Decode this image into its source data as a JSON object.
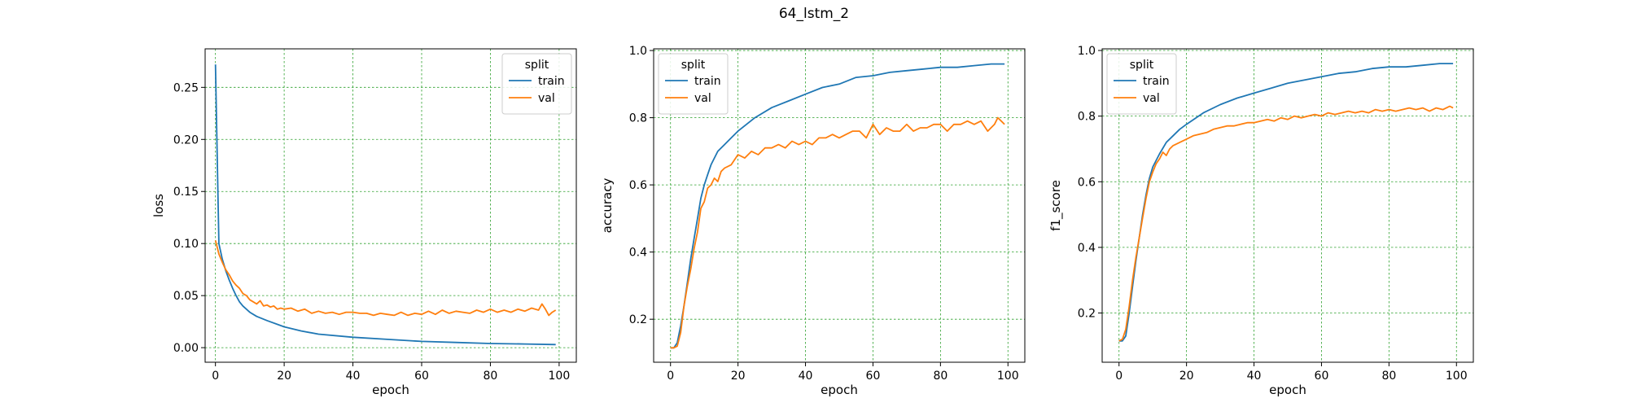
{
  "figure": {
    "suptitle": "64_lstm_2"
  },
  "colors": {
    "train": "#1f77b4",
    "val": "#ff7f0e",
    "grid": "#2ca02c"
  },
  "chart_data": [
    {
      "type": "line",
      "title": "",
      "xlabel": "epoch",
      "ylabel": "loss",
      "xlim": [
        -3,
        105
      ],
      "ylim": [
        -0.014,
        0.287
      ],
      "xticks": [
        0,
        20,
        40,
        60,
        80,
        100
      ],
      "yticks": [
        0.0,
        0.05,
        0.1,
        0.15,
        0.2,
        0.25
      ],
      "ytick_labels": [
        "0.00",
        "0.05",
        "0.10",
        "0.15",
        "0.20",
        "0.25"
      ],
      "grid": true,
      "legend": {
        "title": "split",
        "placement": "top-right"
      },
      "series": [
        {
          "name": "train",
          "x": [
            0,
            1,
            2,
            3,
            4,
            5,
            6,
            7,
            8,
            10,
            12,
            15,
            20,
            25,
            30,
            40,
            50,
            60,
            70,
            80,
            90,
            99
          ],
          "y": [
            0.272,
            0.1,
            0.085,
            0.074,
            0.065,
            0.057,
            0.05,
            0.044,
            0.04,
            0.034,
            0.03,
            0.026,
            0.02,
            0.016,
            0.013,
            0.01,
            0.008,
            0.006,
            0.005,
            0.004,
            0.0035,
            0.003
          ]
        },
        {
          "name": "val",
          "x": [
            0,
            1,
            2,
            3,
            4,
            5,
            6,
            7,
            8,
            9,
            10,
            11,
            12,
            13,
            14,
            15,
            16,
            17,
            18,
            19,
            20,
            22,
            24,
            26,
            28,
            30,
            32,
            34,
            36,
            38,
            40,
            42,
            44,
            46,
            48,
            50,
            52,
            54,
            56,
            58,
            60,
            62,
            64,
            66,
            68,
            70,
            72,
            74,
            76,
            78,
            80,
            82,
            84,
            86,
            88,
            90,
            92,
            94,
            95,
            96,
            97,
            98,
            99
          ],
          "y": [
            0.103,
            0.09,
            0.082,
            0.075,
            0.07,
            0.064,
            0.06,
            0.057,
            0.052,
            0.05,
            0.046,
            0.044,
            0.042,
            0.045,
            0.04,
            0.041,
            0.039,
            0.04,
            0.037,
            0.038,
            0.037,
            0.038,
            0.035,
            0.037,
            0.033,
            0.035,
            0.033,
            0.034,
            0.032,
            0.034,
            0.034,
            0.033,
            0.033,
            0.031,
            0.033,
            0.032,
            0.031,
            0.034,
            0.031,
            0.033,
            0.032,
            0.035,
            0.032,
            0.036,
            0.033,
            0.035,
            0.034,
            0.033,
            0.036,
            0.034,
            0.037,
            0.034,
            0.036,
            0.034,
            0.037,
            0.035,
            0.038,
            0.036,
            0.042,
            0.037,
            0.031,
            0.034,
            0.036
          ]
        }
      ]
    },
    {
      "type": "line",
      "title": "",
      "xlabel": "epoch",
      "ylabel": "accuracy",
      "xlim": [
        -5,
        105
      ],
      "ylim": [
        0.072,
        1.005
      ],
      "xticks": [
        0,
        20,
        40,
        60,
        80,
        100
      ],
      "yticks": [
        0.2,
        0.4,
        0.6,
        0.8,
        1.0
      ],
      "ytick_labels": [
        "0.2",
        "0.4",
        "0.6",
        "0.8",
        "1.0"
      ],
      "grid": true,
      "legend": {
        "title": "split",
        "placement": "top-left"
      },
      "series": [
        {
          "name": "train",
          "x": [
            0,
            1,
            2,
            3,
            4,
            5,
            6,
            7,
            8,
            9,
            10,
            11,
            12,
            14,
            16,
            18,
            20,
            25,
            30,
            35,
            40,
            45,
            50,
            55,
            60,
            65,
            70,
            75,
            80,
            85,
            90,
            95,
            99
          ],
          "y": [
            0.115,
            0.115,
            0.13,
            0.18,
            0.24,
            0.31,
            0.38,
            0.44,
            0.5,
            0.56,
            0.6,
            0.63,
            0.66,
            0.7,
            0.72,
            0.74,
            0.76,
            0.8,
            0.83,
            0.85,
            0.87,
            0.89,
            0.9,
            0.92,
            0.925,
            0.935,
            0.94,
            0.945,
            0.95,
            0.95,
            0.955,
            0.96,
            0.96
          ]
        },
        {
          "name": "val",
          "x": [
            0,
            1,
            2,
            3,
            4,
            5,
            6,
            7,
            8,
            9,
            10,
            11,
            12,
            13,
            14,
            15,
            16,
            18,
            20,
            22,
            24,
            26,
            28,
            30,
            32,
            34,
            36,
            38,
            40,
            42,
            44,
            46,
            48,
            50,
            52,
            54,
            56,
            58,
            60,
            62,
            64,
            66,
            68,
            70,
            72,
            74,
            76,
            78,
            80,
            82,
            84,
            86,
            88,
            90,
            92,
            94,
            96,
            97,
            98,
            99
          ],
          "y": [
            0.115,
            0.115,
            0.12,
            0.16,
            0.24,
            0.3,
            0.35,
            0.41,
            0.46,
            0.53,
            0.55,
            0.59,
            0.6,
            0.62,
            0.61,
            0.64,
            0.65,
            0.66,
            0.69,
            0.68,
            0.7,
            0.69,
            0.71,
            0.71,
            0.72,
            0.71,
            0.73,
            0.72,
            0.73,
            0.72,
            0.74,
            0.74,
            0.75,
            0.74,
            0.75,
            0.76,
            0.76,
            0.74,
            0.78,
            0.75,
            0.77,
            0.76,
            0.76,
            0.78,
            0.76,
            0.77,
            0.77,
            0.78,
            0.78,
            0.76,
            0.78,
            0.78,
            0.79,
            0.78,
            0.79,
            0.76,
            0.78,
            0.8,
            0.79,
            0.78
          ]
        }
      ]
    },
    {
      "type": "line",
      "title": "",
      "xlabel": "epoch",
      "ylabel": "f1_score",
      "xlim": [
        -5,
        105
      ],
      "ylim": [
        0.05,
        1.005
      ],
      "xticks": [
        0,
        20,
        40,
        60,
        80,
        100
      ],
      "yticks": [
        0.2,
        0.4,
        0.6,
        0.8,
        1.0
      ],
      "ytick_labels": [
        "0.2",
        "0.4",
        "0.6",
        "0.8",
        "1.0"
      ],
      "grid": true,
      "legend": {
        "title": "split",
        "placement": "top-left"
      },
      "series": [
        {
          "name": "train",
          "x": [
            0,
            1,
            2,
            3,
            4,
            5,
            6,
            7,
            8,
            9,
            10,
            11,
            12,
            14,
            16,
            18,
            20,
            25,
            30,
            35,
            40,
            45,
            50,
            55,
            60,
            65,
            70,
            75,
            80,
            85,
            90,
            95,
            99
          ],
          "y": [
            0.115,
            0.115,
            0.13,
            0.2,
            0.28,
            0.36,
            0.43,
            0.5,
            0.56,
            0.61,
            0.645,
            0.665,
            0.685,
            0.72,
            0.74,
            0.76,
            0.775,
            0.81,
            0.835,
            0.855,
            0.87,
            0.885,
            0.9,
            0.91,
            0.92,
            0.93,
            0.935,
            0.945,
            0.95,
            0.95,
            0.955,
            0.96,
            0.96
          ]
        },
        {
          "name": "val",
          "x": [
            0,
            1,
            2,
            3,
            4,
            5,
            6,
            7,
            8,
            9,
            10,
            11,
            12,
            13,
            14,
            15,
            16,
            18,
            20,
            22,
            24,
            26,
            28,
            30,
            32,
            34,
            36,
            38,
            40,
            42,
            44,
            46,
            48,
            50,
            52,
            54,
            56,
            58,
            60,
            62,
            64,
            66,
            68,
            70,
            72,
            74,
            76,
            78,
            80,
            82,
            84,
            86,
            88,
            90,
            92,
            94,
            96,
            98,
            99
          ],
          "y": [
            0.115,
            0.12,
            0.15,
            0.22,
            0.3,
            0.37,
            0.43,
            0.49,
            0.55,
            0.6,
            0.63,
            0.655,
            0.67,
            0.69,
            0.68,
            0.7,
            0.71,
            0.72,
            0.73,
            0.74,
            0.745,
            0.75,
            0.76,
            0.765,
            0.77,
            0.77,
            0.775,
            0.78,
            0.78,
            0.785,
            0.79,
            0.785,
            0.795,
            0.79,
            0.8,
            0.795,
            0.8,
            0.805,
            0.8,
            0.81,
            0.805,
            0.81,
            0.815,
            0.81,
            0.815,
            0.81,
            0.82,
            0.815,
            0.82,
            0.815,
            0.82,
            0.825,
            0.82,
            0.825,
            0.815,
            0.825,
            0.82,
            0.83,
            0.825
          ]
        }
      ]
    }
  ]
}
